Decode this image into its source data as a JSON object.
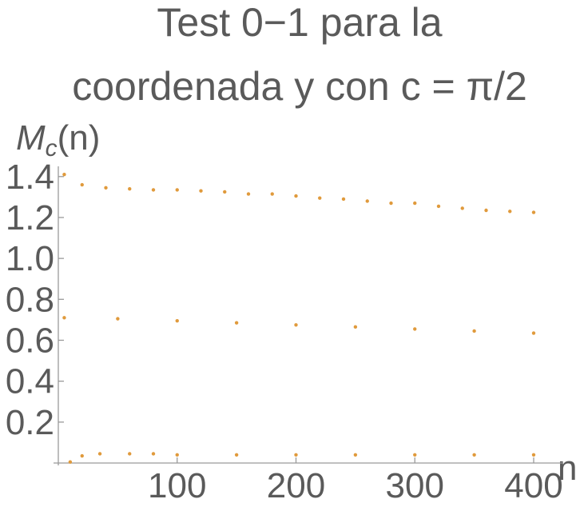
{
  "chart_data": {
    "type": "scatter",
    "title_lines": [
      "Test 0−1 para la",
      "coordenada y con c = π/2"
    ],
    "ylabel_base": "M",
    "ylabel_sub": "c",
    "ylabel_rest": "(n)",
    "xlabel": "n",
    "xlim": [
      0,
      400
    ],
    "ylim": [
      0,
      1.45
    ],
    "xticks": [
      100,
      200,
      300,
      400
    ],
    "yticks": [
      0.2,
      0.4,
      0.6,
      0.8,
      1.0,
      1.2,
      1.4
    ],
    "ytick_labels": [
      "0.2",
      "0.4",
      "0.6",
      "0.8",
      "1.0",
      "1.2",
      "1.4"
    ],
    "grid": false,
    "marker_color": "#e09a3c",
    "series": [
      {
        "x": [
          5,
          20,
          40,
          60,
          80,
          100,
          120,
          140,
          160,
          180,
          200,
          220,
          240,
          260,
          280,
          300,
          320,
          340,
          360,
          380,
          400
        ],
        "y": [
          1.41,
          1.36,
          1.345,
          1.34,
          1.335,
          1.335,
          1.33,
          1.325,
          1.315,
          1.315,
          1.305,
          1.295,
          1.29,
          1.28,
          1.27,
          1.27,
          1.255,
          1.245,
          1.235,
          1.23,
          1.225
        ]
      },
      {
        "x": [
          5,
          50,
          100,
          150,
          200,
          250,
          300,
          350,
          400
        ],
        "y": [
          0.71,
          0.705,
          0.695,
          0.685,
          0.675,
          0.665,
          0.655,
          0.645,
          0.635
        ]
      },
      {
        "x": [
          10,
          20,
          35,
          60,
          80,
          100,
          150,
          200,
          250,
          300,
          350,
          400
        ],
        "y": [
          0.005,
          0.035,
          0.045,
          0.045,
          0.045,
          0.04,
          0.04,
          0.04,
          0.04,
          0.04,
          0.04,
          0.04
        ]
      }
    ]
  }
}
